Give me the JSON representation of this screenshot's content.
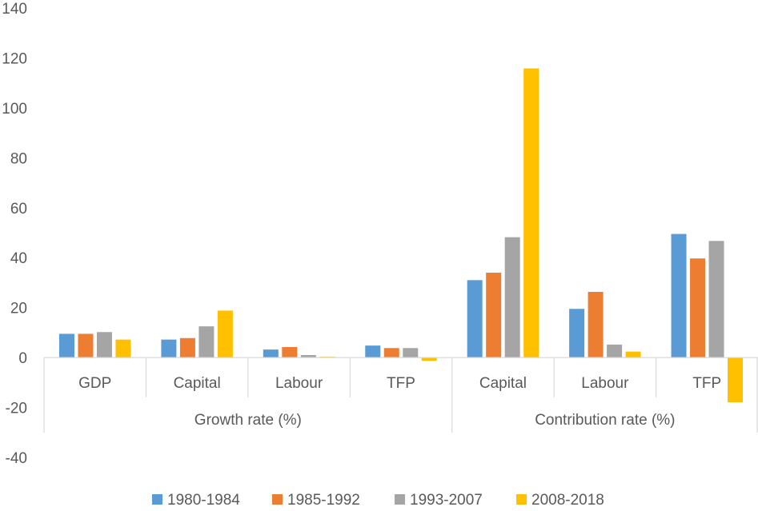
{
  "chart_data": {
    "type": "bar",
    "title": "",
    "xlabel": "",
    "ylabel": "",
    "ylim": [
      -40,
      140
    ],
    "yticks": [
      140,
      120,
      100,
      80,
      60,
      40,
      20,
      0,
      -20,
      -40
    ],
    "grid": false,
    "legend_position": "bottom",
    "groups": [
      {
        "label": "Growth rate (%)",
        "categories": [
          "GDP",
          "Capital",
          "Labour",
          "TFP"
        ]
      },
      {
        "label": "Contribution rate (%)",
        "categories": [
          "Capital",
          "Labour",
          "TFP"
        ]
      }
    ],
    "categories": [
      "GDP",
      "Capital",
      "Labour",
      "TFP",
      "Capital",
      "Labour",
      "TFP"
    ],
    "series": [
      {
        "name": "1980-1984",
        "color": "#5B9BD5",
        "values": [
          9.5,
          7.2,
          3.2,
          4.8,
          31,
          19.5,
          49.5
        ]
      },
      {
        "name": "1985-1992",
        "color": "#ED7D31",
        "values": [
          9.5,
          7.8,
          4.2,
          3.8,
          34,
          26.3,
          39.7
        ]
      },
      {
        "name": "1993-2007",
        "color": "#A5A5A5",
        "values": [
          10.2,
          12.5,
          1,
          3.8,
          48.2,
          5.2,
          46.7
        ]
      },
      {
        "name": "2008-2018",
        "color": "#FFC000",
        "values": [
          7.2,
          18.8,
          0.3,
          -1.3,
          115.8,
          2.4,
          -17.9
        ]
      }
    ]
  }
}
